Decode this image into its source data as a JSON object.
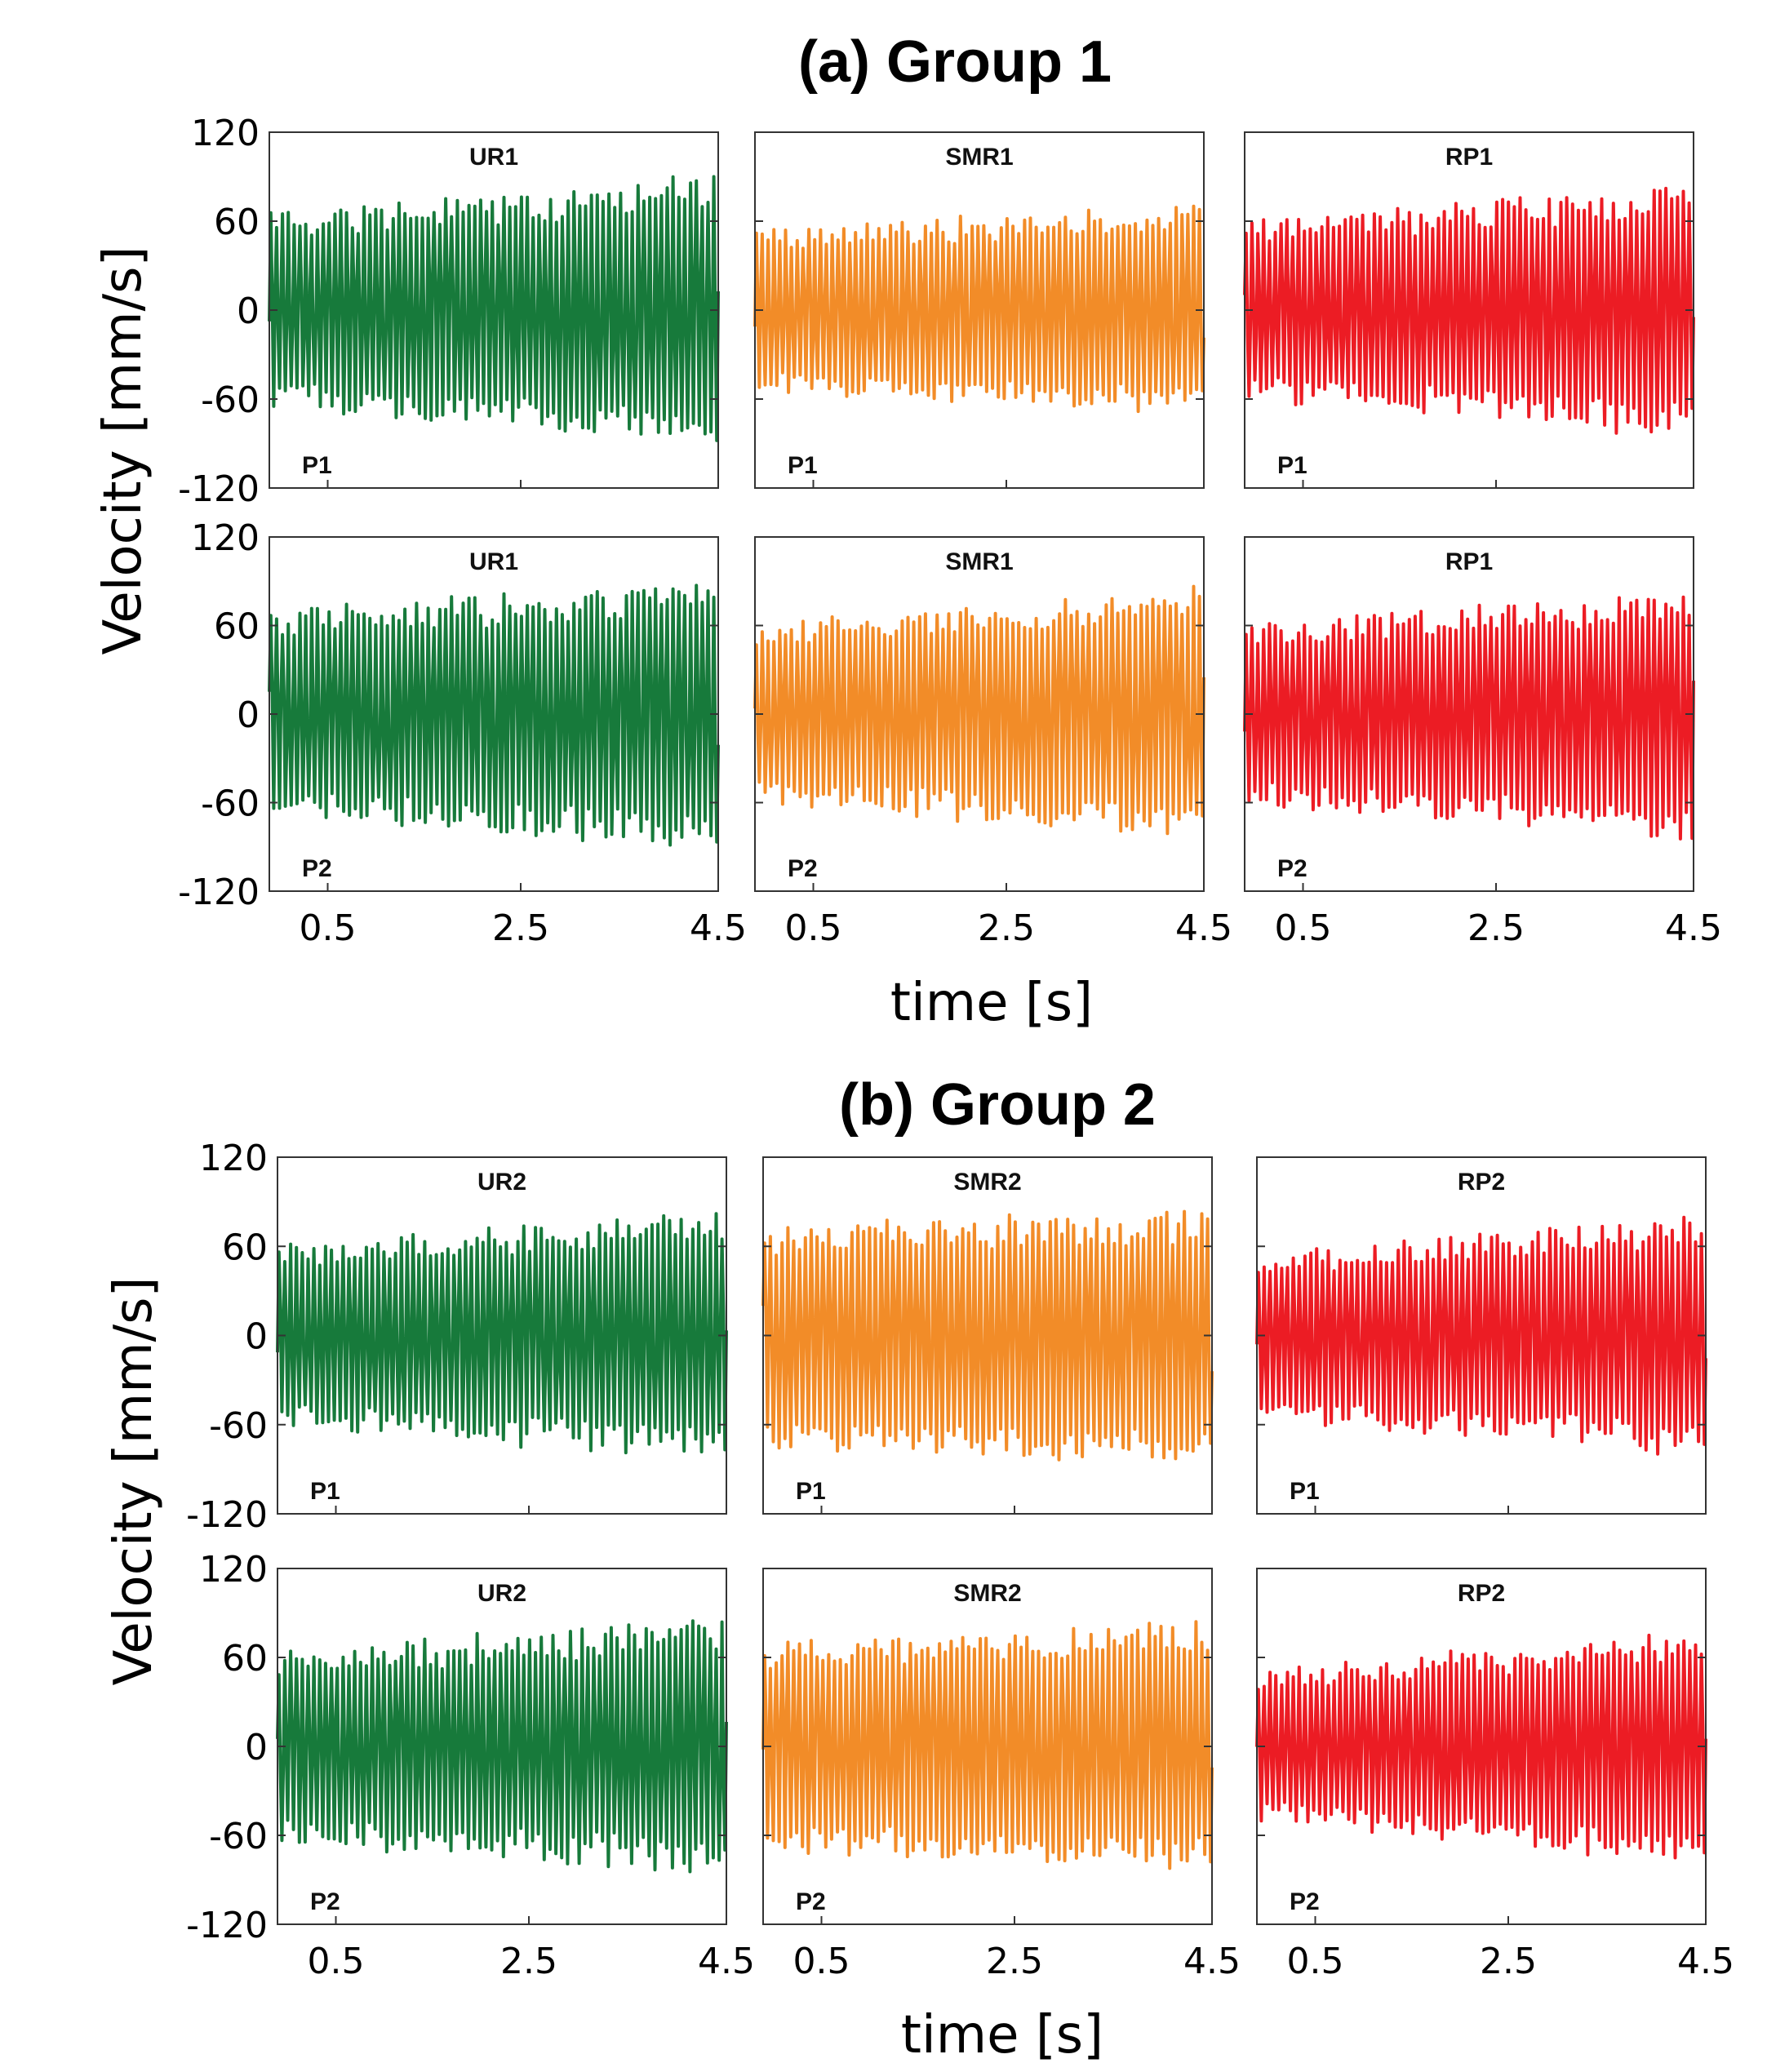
{
  "colors": {
    "UR": "#177a3b",
    "SMR": "#f28c28",
    "RP": "#ec1c24"
  },
  "chart_data": [
    {
      "group_title": "(a) Group 1",
      "type": "line",
      "ylabel": "Velocity [mm/s]",
      "xlabel": "time [s]",
      "yticks": [
        "120",
        "60",
        "0",
        "-60",
        "-120"
      ],
      "ylim": [
        -120,
        120
      ],
      "xlim": [
        0,
        4.5
      ],
      "xticks": [
        "0.5",
        "2.5",
        "4.5"
      ],
      "panels": [
        {
          "id": "g1-ur-p1",
          "series": "UR1",
          "point": "P1",
          "color_key": "UR",
          "amplitude": [
            65,
            90
          ],
          "freq_hz": 17
        },
        {
          "id": "g1-smr-p1",
          "series": "SMR1",
          "point": "P1",
          "color_key": "SMR",
          "amplitude": [
            55,
            70
          ],
          "freq_hz": 17
        },
        {
          "id": "g1-rp-p1",
          "series": "RP1",
          "point": "P1",
          "color_key": "RP",
          "amplitude": [
            60,
            85
          ],
          "freq_hz": 17
        },
        {
          "id": "g1-ur-p2",
          "series": "UR1",
          "point": "P2",
          "color_key": "UR",
          "amplitude": [
            70,
            90
          ],
          "freq_hz": 17
        },
        {
          "id": "g1-smr-p2",
          "series": "SMR1",
          "point": "P2",
          "color_key": "SMR",
          "amplitude": [
            60,
            85
          ],
          "freq_hz": 17
        },
        {
          "id": "g1-rp-p2",
          "series": "RP1",
          "point": "P2",
          "color_key": "RP",
          "amplitude": [
            60,
            85
          ],
          "freq_hz": 17
        }
      ]
    },
    {
      "group_title": "(b) Group 2",
      "type": "line",
      "ylabel": "Velocity [mm/s]",
      "xlabel": "time [s]",
      "yticks": [
        "120",
        "60",
        "0",
        "-60",
        "-120"
      ],
      "ylim": [
        -120,
        120
      ],
      "xlim": [
        0,
        4.5
      ],
      "xticks": [
        "0.5",
        "2.5",
        "4.5"
      ],
      "panels": [
        {
          "id": "g2-ur-p1",
          "series": "UR2",
          "point": "P1",
          "color_key": "UR",
          "amplitude": [
            60,
            85
          ],
          "freq_hz": 17
        },
        {
          "id": "g2-smr-p1",
          "series": "SMR2",
          "point": "P1",
          "color_key": "SMR",
          "amplitude": [
            75,
            85
          ],
          "freq_hz": 17
        },
        {
          "id": "g2-rp-p1",
          "series": "RP2",
          "point": "P1",
          "color_key": "RP",
          "amplitude": [
            55,
            80
          ],
          "freq_hz": 17
        },
        {
          "id": "g2-ur-p2",
          "series": "UR2",
          "point": "P2",
          "color_key": "UR",
          "amplitude": [
            65,
            85
          ],
          "freq_hz": 17
        },
        {
          "id": "g2-smr-p2",
          "series": "SMR2",
          "point": "P2",
          "color_key": "SMR",
          "amplitude": [
            70,
            85
          ],
          "freq_hz": 17
        },
        {
          "id": "g2-rp-p2",
          "series": "RP2",
          "point": "P2",
          "color_key": "RP",
          "amplitude": [
            50,
            80
          ],
          "freq_hz": 17
        }
      ]
    }
  ]
}
